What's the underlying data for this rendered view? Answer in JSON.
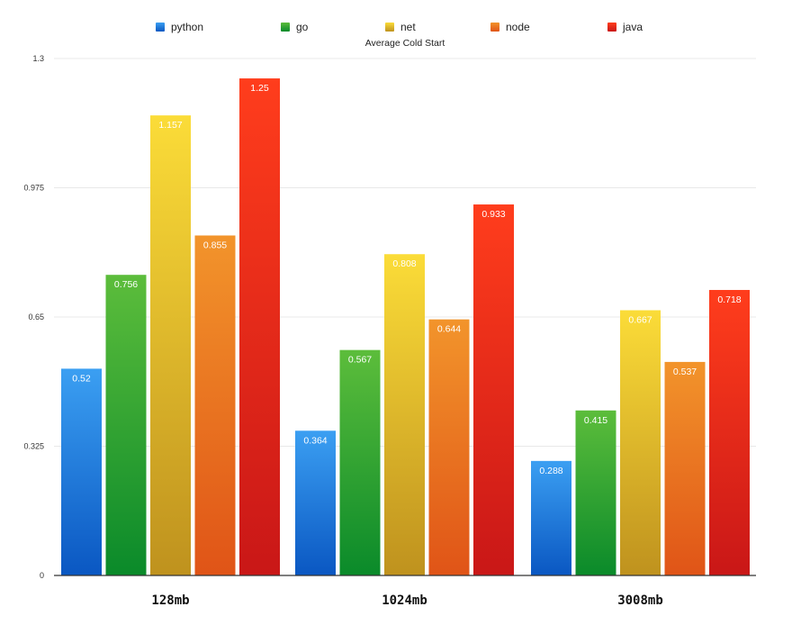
{
  "chart_data": {
    "type": "bar",
    "title": "Average Cold Start",
    "xlabel": "",
    "ylabel": "",
    "categories": [
      "128mb",
      "1024mb",
      "3008mb"
    ],
    "series": [
      {
        "name": "python",
        "values": [
          0.52,
          0.364,
          0.288
        ],
        "labels": [
          "0.52",
          "0.364",
          "0.288"
        ],
        "color_top": "#3b9ff2",
        "color_bottom": "#0a57c2"
      },
      {
        "name": "go",
        "values": [
          0.756,
          0.567,
          0.415
        ],
        "labels": [
          "0.756",
          "0.567",
          "0.415"
        ],
        "color_top": "#5cbd3b",
        "color_bottom": "#0a8a2a"
      },
      {
        "name": "net",
        "values": [
          1.157,
          0.808,
          0.667
        ],
        "labels": [
          "1.157",
          "0.808",
          "0.667"
        ],
        "color_top": "#fbdc38",
        "color_bottom": "#bf921e"
      },
      {
        "name": "node",
        "values": [
          0.855,
          0.644,
          0.537
        ],
        "labels": [
          "0.855",
          "0.644",
          "0.537"
        ],
        "color_top": "#f2942b",
        "color_bottom": "#e05417"
      },
      {
        "name": "java",
        "values": [
          1.25,
          0.933,
          0.718
        ],
        "labels": [
          "1.25",
          "0.933",
          "0.718"
        ],
        "color_top": "#ff3d1c",
        "color_bottom": "#c91717"
      }
    ],
    "yticks": [
      0,
      0.325,
      0.65,
      0.975,
      1.3
    ],
    "ytick_labels": [
      "0",
      "0.325",
      "0.65",
      "0.975",
      "1.3"
    ],
    "ylim": [
      0,
      1.3
    ],
    "grid": true,
    "legend_position": "top-center"
  }
}
